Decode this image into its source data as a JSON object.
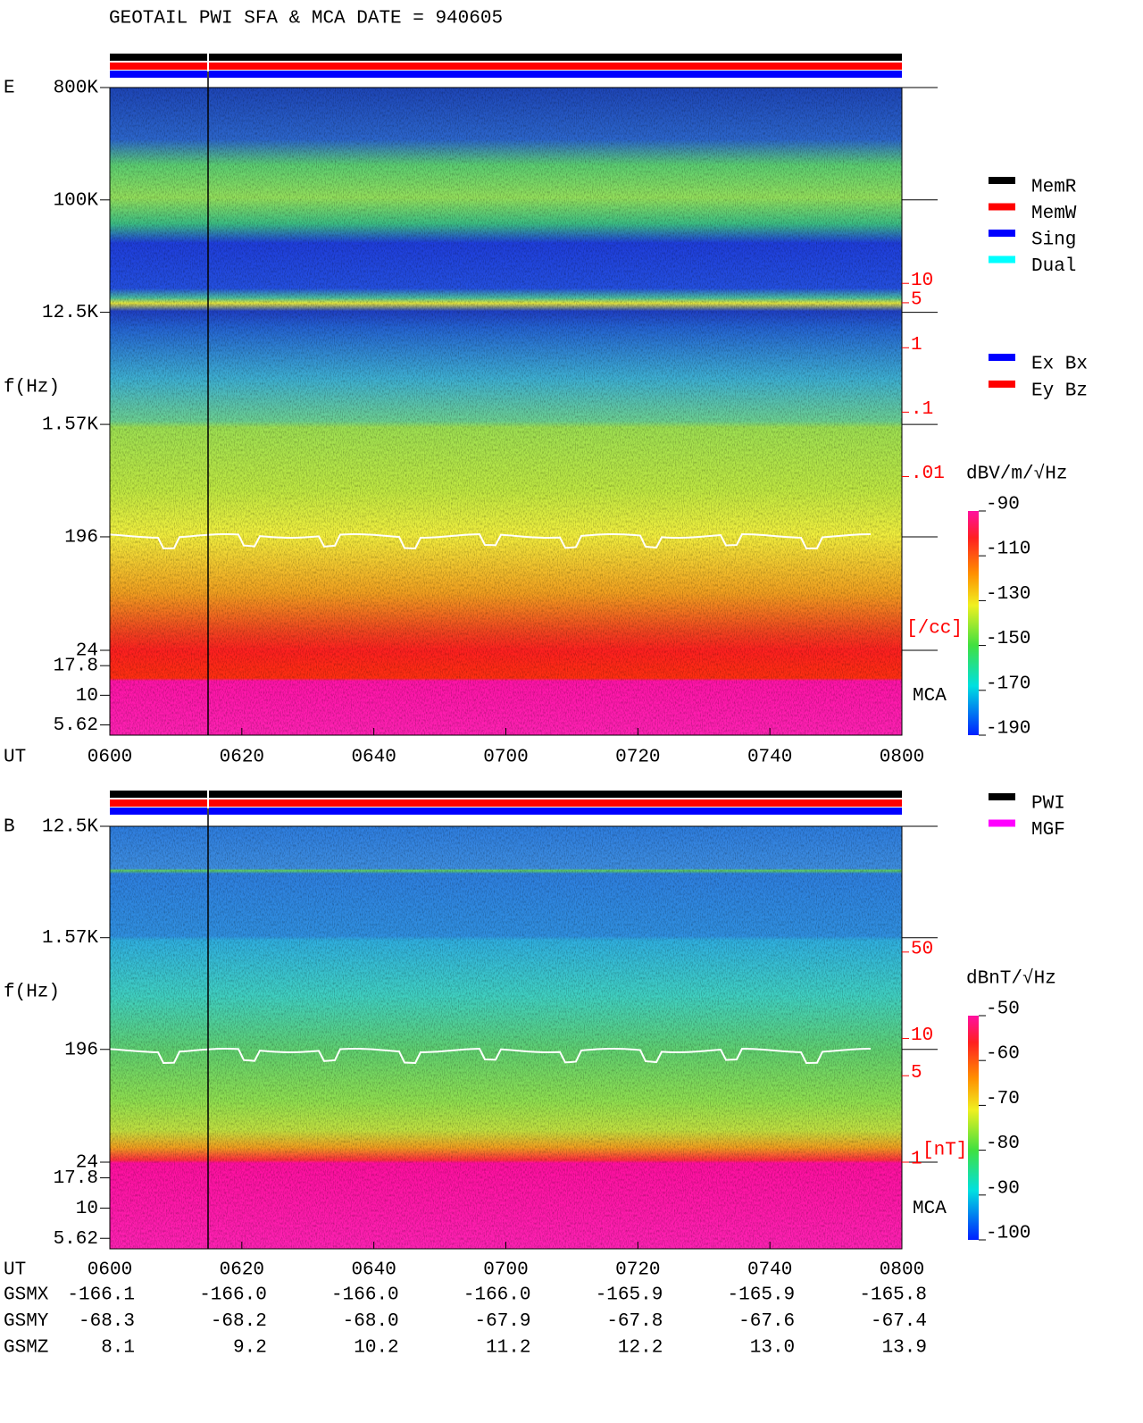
{
  "header": {
    "title": "GEOTAIL  PWI SFA & MCA   DATE = 940605"
  },
  "chart_data": [
    {
      "type": "spectrogram",
      "panel_label": "E",
      "ylabel": "f(Hz)",
      "xlabel": "UT",
      "ylim": [
        24,
        800000
      ],
      "yticks": [
        {
          "value": 800000,
          "label": "800K"
        },
        {
          "value": 100000,
          "label": "100K"
        },
        {
          "value": 12500,
          "label": "12.5K"
        },
        {
          "value": 1570,
          "label": "1.57K"
        },
        196,
        24,
        17.8,
        10,
        5.62
      ],
      "mca_ylim": [
        4.6,
        24
      ],
      "mca_label": "MCA",
      "xlim": [
        360,
        480
      ],
      "xticks": [
        {
          "value": 360,
          "label": "0600"
        },
        {
          "value": 380,
          "label": "0620"
        },
        {
          "value": 400,
          "label": "0640"
        },
        {
          "value": 420,
          "label": "0700"
        },
        {
          "value": 440,
          "label": "0720"
        },
        {
          "value": 460,
          "label": "0740"
        },
        {
          "value": 480,
          "label": "0800"
        }
      ],
      "density_lim": [
        2e-05,
        11000
      ],
      "density_ticks": [
        10,
        5,
        1,
        {
          "value": 0.1,
          "label": ".1"
        },
        {
          "value": 0.01,
          "label": ".01"
        }
      ],
      "density_unit": "[/cc]",
      "legend": [
        {
          "name": "MemR",
          "color": "#000000"
        },
        {
          "name": "MemW",
          "color": "#ff0000"
        },
        {
          "name": "Sing",
          "color": "#0000ff"
        },
        {
          "name": "Dual",
          "color": "#00ffff"
        }
      ],
      "sensor_legend": [
        {
          "name": "Ex Bx",
          "color": "#0000ff"
        },
        {
          "name": "Ey Bz",
          "color": "#ff0000"
        }
      ],
      "colorbar": {
        "label": "dBV/m/√Hz",
        "lim": [
          -190,
          -90
        ],
        "ticks": [
          -90,
          -110,
          -130,
          -150,
          -170,
          -190
        ]
      }
    },
    {
      "type": "spectrogram",
      "panel_label": "B",
      "ylabel": "f(Hz)",
      "xlabel": "UT",
      "ylim": [
        24,
        12500
      ],
      "yticks": [
        {
          "value": 12500,
          "label": "12.5K"
        },
        {
          "value": 1570,
          "label": "1.57K"
        },
        196,
        24,
        17.8,
        10,
        5.62
      ],
      "mca_ylim": [
        4.6,
        24
      ],
      "mca_label": "MCA",
      "xlim": [
        360,
        480
      ],
      "xticks": [
        {
          "value": 360,
          "label": "0600"
        },
        {
          "value": 380,
          "label": "0620"
        },
        {
          "value": 400,
          "label": "0640"
        },
        {
          "value": 420,
          "label": "0700"
        },
        {
          "value": 440,
          "label": "0720"
        },
        {
          "value": 460,
          "label": "0740"
        },
        {
          "value": 480,
          "label": "0800"
        }
      ],
      "density_lim": [
        1,
        520
      ],
      "density_ticks": [
        50,
        10,
        5,
        1
      ],
      "density_unit": "[nT]",
      "legend": [
        {
          "name": "PWI",
          "color": "#000000"
        },
        {
          "name": "MGF",
          "color": "#ff00ff"
        }
      ],
      "colorbar": {
        "label": "dBnT/√Hz",
        "lim": [
          -100,
          -50
        ],
        "ticks": [
          -50,
          -60,
          -70,
          -80,
          -90,
          -100
        ]
      }
    }
  ],
  "orbit_table": {
    "rows": [
      {
        "label": "GSMX",
        "values": [
          "-166.1",
          "-166.0",
          "-166.0",
          "-166.0",
          "-165.9",
          "-165.9",
          "-165.8"
        ]
      },
      {
        "label": "GSMY",
        "values": [
          "-68.3",
          "-68.2",
          "-68.0",
          "-67.9",
          "-67.8",
          "-67.6",
          "-67.4"
        ]
      },
      {
        "label": "GSMZ",
        "values": [
          "8.1",
          "9.2",
          "10.2",
          "11.2",
          "12.2",
          "13.0",
          "13.9"
        ]
      }
    ]
  }
}
